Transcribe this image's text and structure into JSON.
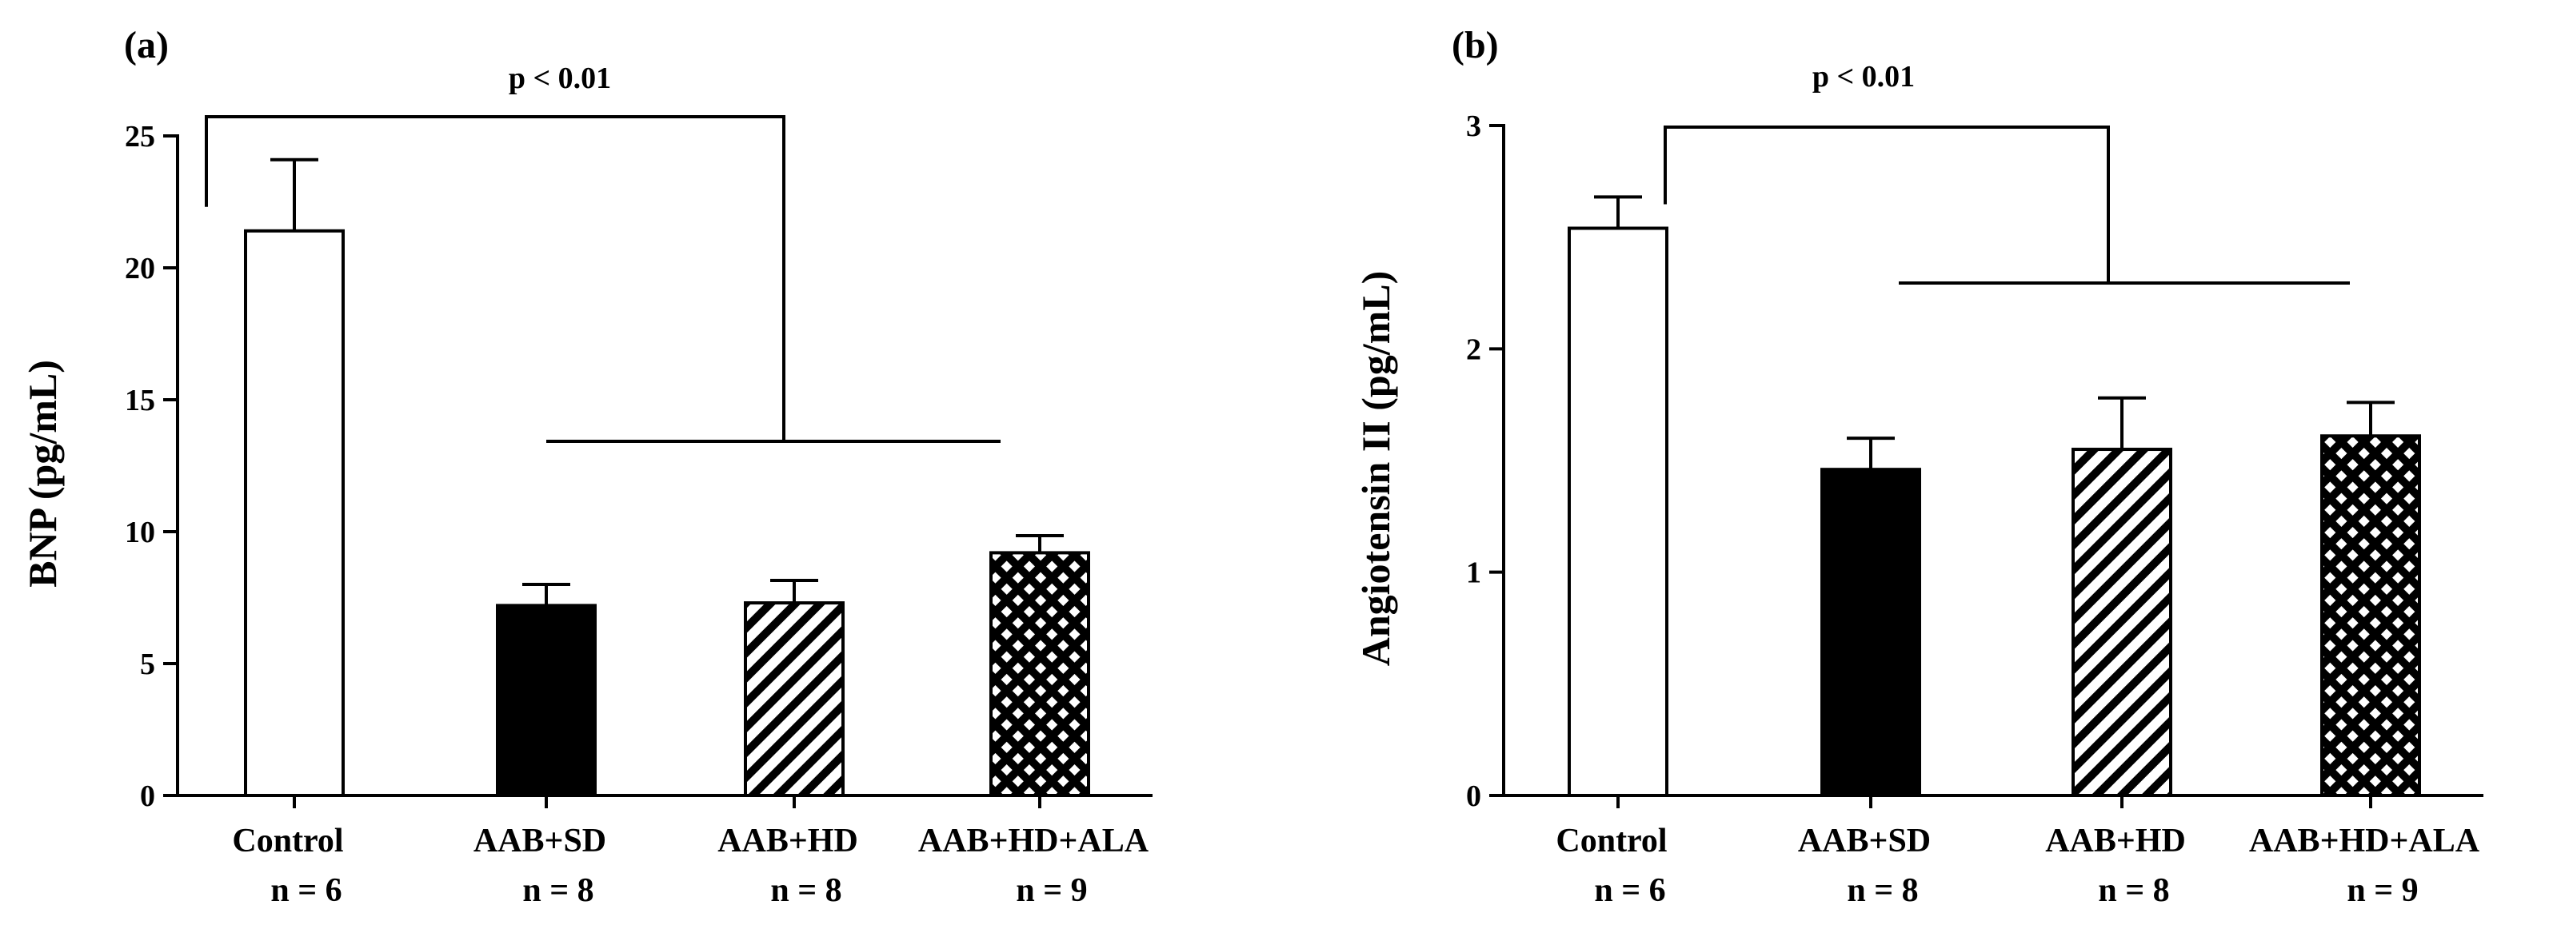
{
  "chart_data": [
    {
      "type": "bar",
      "panel_label": "(a)",
      "ylabel": "BNP (pg/mL)",
      "ylim": [
        0,
        25
      ],
      "yticks": [
        "0",
        "5",
        "10",
        "15",
        "20",
        "25"
      ],
      "categories": [
        "Control",
        "AAB+SD",
        "AAB+HD",
        "AAB+HD+ALA"
      ],
      "n_labels": [
        "n = 6",
        "n = 8",
        "n = 8",
        "n = 9"
      ],
      "values": [
        21.4,
        7.2,
        7.3,
        9.2
      ],
      "errors": [
        2.7,
        0.8,
        0.85,
        0.65
      ],
      "fills": [
        "white",
        "black",
        "hatch",
        "crosshatch"
      ],
      "significance": "p < 0.01"
    },
    {
      "type": "bar",
      "panel_label": "(b)",
      "ylabel": "Angiotensin II (pg/mL)",
      "ylim": [
        0,
        3
      ],
      "yticks": [
        "0",
        "1",
        "2",
        "3"
      ],
      "categories": [
        "Control",
        "AAB+SD",
        "AAB+HD",
        "AAB+HD+ALA"
      ],
      "n_labels": [
        "n = 6",
        "n = 8",
        "n = 8",
        "n = 9"
      ],
      "values": [
        2.54,
        1.46,
        1.55,
        1.61
      ],
      "errors": [
        0.14,
        0.14,
        0.23,
        0.15
      ],
      "fills": [
        "white",
        "black",
        "hatch",
        "crosshatch"
      ],
      "significance": "p < 0.01"
    }
  ]
}
